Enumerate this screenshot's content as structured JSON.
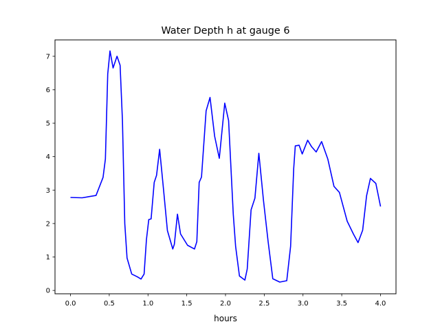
{
  "chart_data": {
    "type": "line",
    "title": "Water Depth h at gauge 6",
    "xlabel": "hours",
    "ylabel": "",
    "xlim": [
      -0.2,
      4.2
    ],
    "ylim": [
      -0.1,
      7.49
    ],
    "xticks": [
      "0.0",
      "0.5",
      "1.0",
      "1.5",
      "2.0",
      "2.5",
      "3.0",
      "3.5",
      "4.0"
    ],
    "yticks": [
      "0",
      "1",
      "2",
      "3",
      "4",
      "5",
      "6",
      "7"
    ],
    "grid": false,
    "color": "#0000ff",
    "series": [
      {
        "name": "h",
        "x": [
          0,
          0.15,
          0.33,
          0.42,
          0.45,
          0.48,
          0.51,
          0.55,
          0.6,
          0.64,
          0.67,
          0.7,
          0.73,
          0.79,
          0.86,
          0.91,
          0.95,
          0.98,
          1.01,
          1.04,
          1.08,
          1.11,
          1.15,
          1.2,
          1.25,
          1.32,
          1.34,
          1.38,
          1.42,
          1.51,
          1.6,
          1.63,
          1.66,
          1.69,
          1.75,
          1.8,
          1.86,
          1.92,
          1.99,
          2.04,
          2.1,
          2.13,
          2.18,
          2.25,
          2.28,
          2.33,
          2.38,
          2.43,
          2.49,
          2.55,
          2.61,
          2.7,
          2.79,
          2.84,
          2.88,
          2.9,
          2.95,
          2.99,
          3.06,
          3.11,
          3.17,
          3.24,
          3.32,
          3.4,
          3.47,
          3.57,
          3.65,
          3.71,
          3.77,
          3.82,
          3.87,
          3.94,
          4.0
        ],
        "y": [
          2.78,
          2.77,
          2.84,
          3.38,
          3.93,
          6.47,
          7.16,
          6.65,
          7.0,
          6.73,
          5.08,
          2.0,
          0.97,
          0.49,
          0.41,
          0.34,
          0.49,
          1.52,
          2.12,
          2.14,
          3.23,
          3.44,
          4.22,
          3.03,
          1.79,
          1.24,
          1.38,
          2.28,
          1.69,
          1.35,
          1.24,
          1.46,
          3.23,
          3.39,
          5.37,
          5.77,
          4.61,
          3.95,
          5.6,
          5.08,
          2.28,
          1.32,
          0.43,
          0.31,
          0.64,
          2.41,
          2.76,
          4.1,
          2.7,
          1.46,
          0.35,
          0.25,
          0.29,
          1.32,
          3.64,
          4.32,
          4.34,
          4.08,
          4.49,
          4.3,
          4.14,
          4.45,
          3.93,
          3.11,
          2.93,
          2.07,
          1.69,
          1.43,
          1.8,
          2.83,
          3.35,
          3.2,
          2.51
        ]
      }
    ]
  }
}
